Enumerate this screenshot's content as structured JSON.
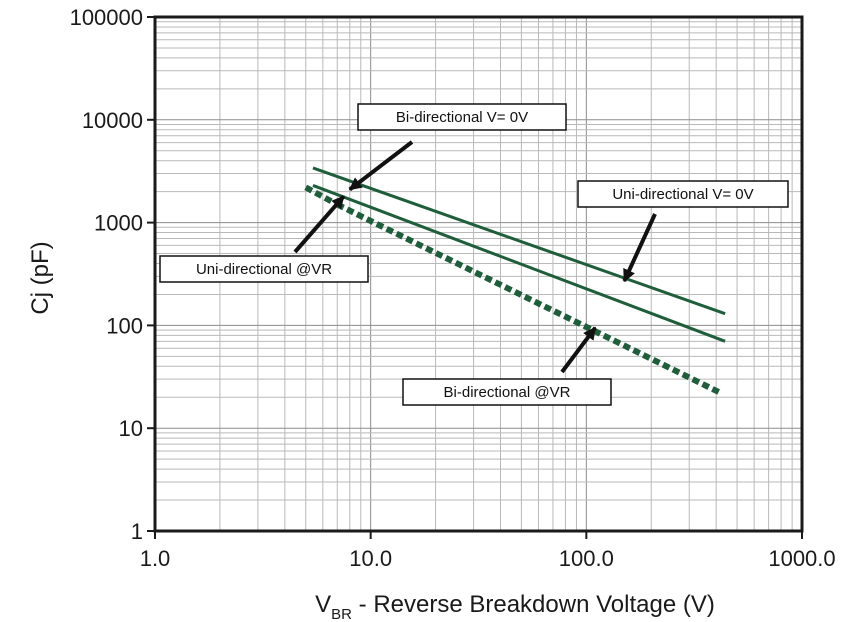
{
  "chart_data": {
    "type": "line",
    "xlabel": "V",
    "xlabel_sub": "BR",
    "xlabel_rest": " - Reverse Breakdown Voltage (V)",
    "ylabel": "Cj (pF)",
    "xscale": "log",
    "yscale": "log",
    "xlim": [
      1,
      1000
    ],
    "ylim": [
      1,
      100000
    ],
    "grid": true,
    "x_tick_values": [
      1,
      10,
      100,
      1000
    ],
    "x_tick_labels": [
      "1.0",
      "10.0",
      "100.0",
      "1000.0"
    ],
    "y_tick_values": [
      1,
      10,
      100,
      1000,
      10000,
      100000
    ],
    "y_tick_labels": [
      "1",
      "10",
      "100",
      "1000",
      "10000",
      "100000"
    ],
    "series": [
      {
        "name": "Bi-directional V= 0V",
        "style": "solid",
        "color": "#1f5e3a",
        "x": [
          5.4,
          440
        ],
        "y": [
          3400,
          130
        ]
      },
      {
        "name": "Uni-directional V= 0V",
        "style": "solid",
        "color": "#1f5e3a",
        "x": [
          5.4,
          440
        ],
        "y": [
          2300,
          70
        ]
      },
      {
        "name": "Uni-directional @VR",
        "style": "dashed",
        "color": "#1f5e3a",
        "x": [
          5.0,
          7.0
        ],
        "y": [
          2200,
          1500
        ]
      },
      {
        "name": "Bi-directional @VR",
        "style": "dashed",
        "color": "#1f5e3a",
        "x": [
          7.0,
          420
        ],
        "y": [
          1500,
          22
        ]
      }
    ],
    "annotations": [
      {
        "text": "Bi-directional V= 0V",
        "points_to": [
          8.0,
          2100
        ]
      },
      {
        "text": "Uni-directional V= 0V",
        "points_to": [
          150,
          270
        ]
      },
      {
        "text": "Uni-directional @VR",
        "points_to": [
          7.5,
          1800
        ]
      },
      {
        "text": "Bi-directional @VR",
        "points_to": [
          110,
          95
        ]
      }
    ]
  }
}
